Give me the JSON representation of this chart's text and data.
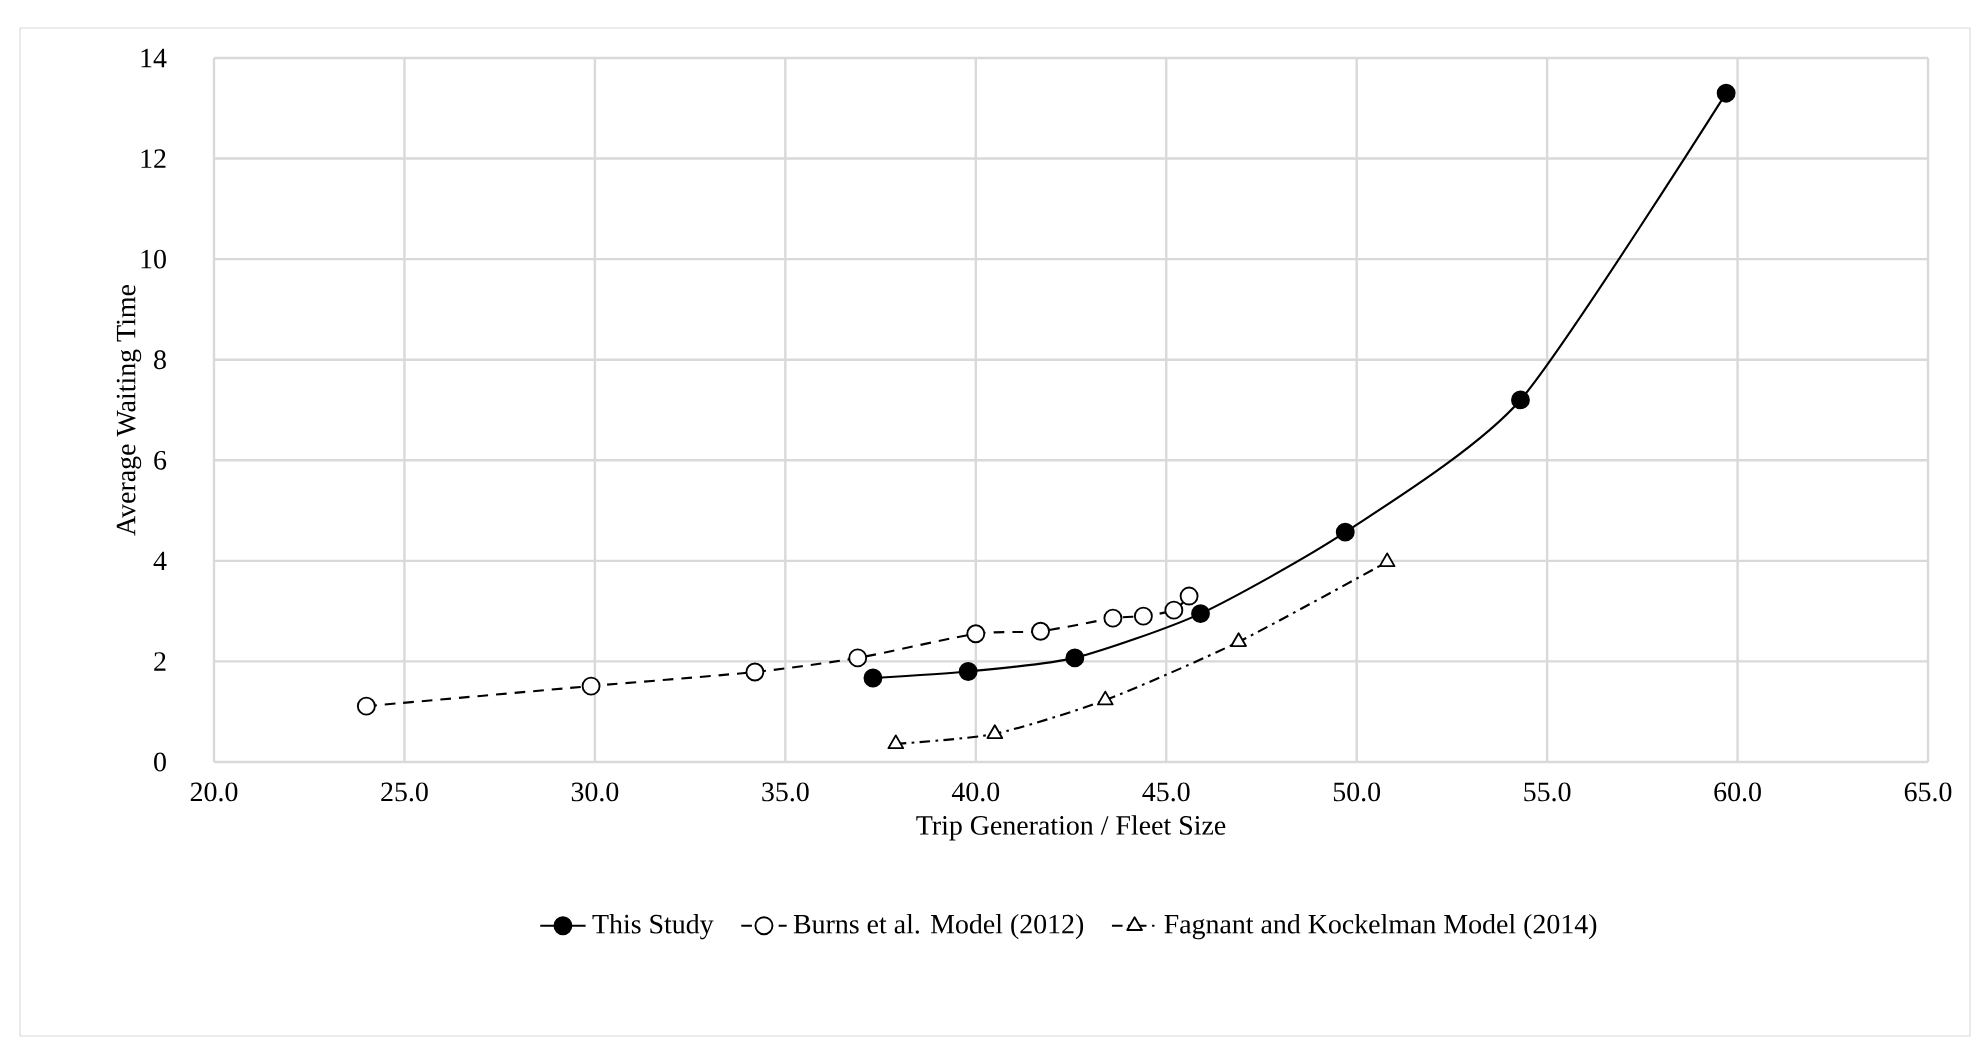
{
  "chart_data": {
    "type": "line",
    "xlabel": "Trip Generation / Fleet Size",
    "ylabel": "Average Waiting Time",
    "xlim": [
      20,
      65
    ],
    "ylim": [
      0,
      14
    ],
    "xticks": [
      {
        "value": 20,
        "label": "20.0"
      },
      {
        "value": 25,
        "label": "25.0"
      },
      {
        "value": 30,
        "label": "30.0"
      },
      {
        "value": 35,
        "label": "35.0"
      },
      {
        "value": 40,
        "label": "40.0"
      },
      {
        "value": 45,
        "label": "45.0"
      },
      {
        "value": 50,
        "label": "50.0"
      },
      {
        "value": 55,
        "label": "55.0"
      },
      {
        "value": 60,
        "label": "60.0"
      },
      {
        "value": 65,
        "label": "65.0"
      }
    ],
    "yticks": [
      0,
      2,
      4,
      6,
      8,
      10,
      12,
      14
    ],
    "grid": true,
    "legend": "bottom",
    "series": [
      {
        "name": "This Study",
        "color": "#000000",
        "marker": "circle",
        "line_style": "solid",
        "x": [
          37.3,
          39.8,
          42.6,
          45.9,
          49.7,
          54.3,
          59.7
        ],
        "values": [
          1.67,
          1.8,
          2.07,
          2.95,
          4.57,
          7.2,
          13.3
        ]
      },
      {
        "name": "Burns et al.  Model (2012)",
        "color": "#000000",
        "marker": "circle",
        "line_style": "dashed",
        "x": [
          24.0,
          29.9,
          34.2,
          36.9,
          40.0,
          41.7,
          43.6,
          44.4,
          45.2,
          45.6
        ],
        "values": [
          1.11,
          1.51,
          1.79,
          2.07,
          2.55,
          2.6,
          2.86,
          2.9,
          3.02,
          3.3
        ]
      },
      {
        "name": "Fagnant and Kockelman Model (2014)",
        "color": "#000000",
        "marker": "triangle",
        "line_style": "dashdot",
        "x": [
          37.9,
          40.5,
          43.4,
          46.9,
          50.8
        ],
        "values": [
          0.36,
          0.56,
          1.23,
          2.39,
          3.98
        ]
      }
    ]
  }
}
